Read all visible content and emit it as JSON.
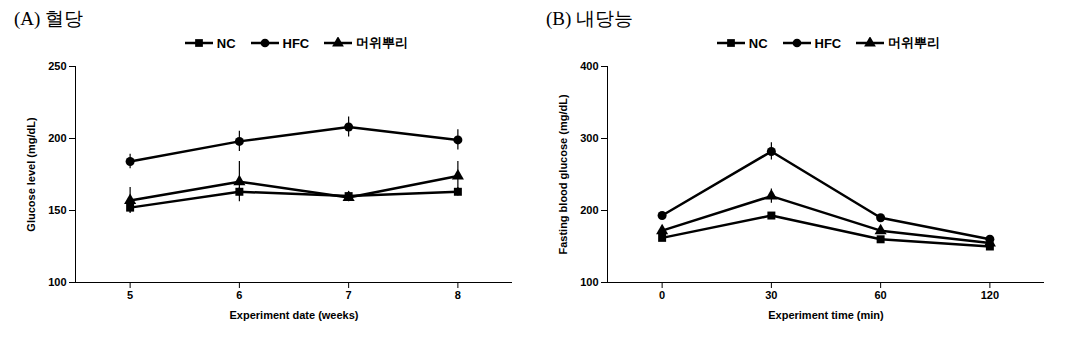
{
  "chart_data": [
    {
      "type": "line",
      "title": "(A) 혈당",
      "x_label": "Experiment date (weeks)",
      "y_label": "Glucose level (mg/dL)",
      "categories": [
        "5",
        "6",
        "7",
        "8"
      ],
      "series": [
        {
          "name": "NC",
          "color": "#000000",
          "marker": "square",
          "values": [
            152,
            163,
            160,
            163
          ],
          "errors": [
            3,
            3,
            3,
            3
          ]
        },
        {
          "name": "HFC",
          "color": "#000000",
          "marker": "circle",
          "values": [
            184,
            198,
            208,
            199
          ],
          "errors": [
            5,
            7,
            7,
            7
          ]
        },
        {
          "name": "머위뿌리",
          "color": "#000000",
          "marker": "triangle",
          "values": [
            157,
            170,
            159,
            174
          ],
          "errors": [
            9,
            14,
            3,
            10
          ]
        }
      ],
      "ylim": [
        100,
        250
      ],
      "yticks": [
        100,
        150,
        200,
        250
      ],
      "legend": "top"
    },
    {
      "type": "line",
      "title": "(B) 내당능",
      "x_label": "Experiment time (min)",
      "y_label": "Fasting blood glucose (mg/dL)",
      "categories": [
        "0",
        "30",
        "60",
        "120"
      ],
      "series": [
        {
          "name": "NC",
          "color": "#000000",
          "marker": "square",
          "values": [
            162,
            193,
            160,
            150
          ],
          "errors": [
            3,
            4,
            3,
            3
          ]
        },
        {
          "name": "HFC",
          "color": "#000000",
          "marker": "circle",
          "values": [
            193,
            282,
            190,
            160
          ],
          "errors": [
            4,
            12,
            4,
            4
          ]
        },
        {
          "name": "머위뿌리",
          "color": "#000000",
          "marker": "triangle",
          "values": [
            172,
            220,
            172,
            155
          ],
          "errors": [
            4,
            10,
            4,
            3
          ]
        }
      ],
      "ylim": [
        100,
        400
      ],
      "yticks": [
        100,
        200,
        300,
        400
      ],
      "legend": "top"
    }
  ]
}
